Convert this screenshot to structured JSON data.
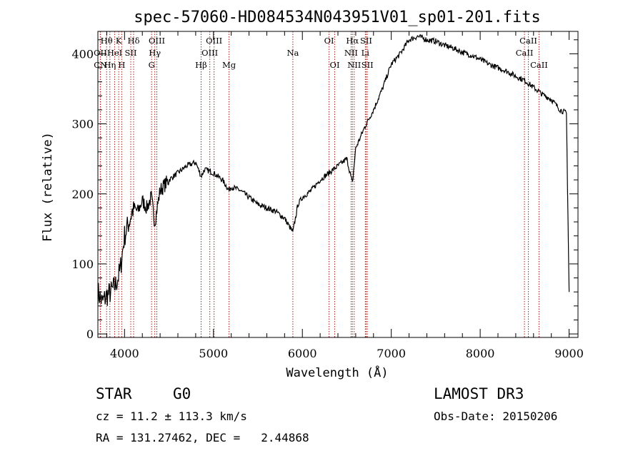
{
  "chart_data": {
    "type": "line",
    "title": "spec-57060-HD084534N043951V01_sp01-201.fits",
    "xlabel": "Wavelength (Å)",
    "ylabel": "Flux (relative)",
    "xlim": [
      3700,
      9100
    ],
    "ylim": [
      -5,
      432
    ],
    "x_ticks": [
      4000,
      5000,
      6000,
      7000,
      8000,
      9000
    ],
    "y_ticks": [
      0,
      100,
      200,
      300,
      400
    ],
    "series": [
      {
        "name": "spectrum",
        "x": [
          3700,
          3750,
          3800,
          3850,
          3900,
          3950,
          4000,
          4050,
          4100,
          4150,
          4200,
          4250,
          4300,
          4340,
          4400,
          4500,
          4600,
          4700,
          4800,
          4861,
          4900,
          5000,
          5100,
          5175,
          5200,
          5300,
          5400,
          5500,
          5600,
          5700,
          5800,
          5893,
          5950,
          6000,
          6100,
          6200,
          6300,
          6400,
          6500,
          6563,
          6600,
          6700,
          6800,
          6900,
          7000,
          7100,
          7200,
          7300,
          7400,
          7500,
          7600,
          7700,
          7800,
          7900,
          8000,
          8100,
          8200,
          8300,
          8400,
          8500,
          8600,
          8700,
          8800,
          8900,
          8970,
          9000
        ],
        "values": [
          60,
          45,
          55,
          60,
          70,
          90,
          140,
          160,
          180,
          175,
          190,
          180,
          195,
          160,
          205,
          220,
          230,
          240,
          245,
          225,
          235,
          230,
          220,
          205,
          210,
          205,
          195,
          185,
          180,
          175,
          165,
          145,
          185,
          195,
          205,
          220,
          230,
          240,
          250,
          215,
          265,
          295,
          320,
          350,
          385,
          400,
          420,
          425,
          420,
          418,
          412,
          408,
          402,
          398,
          392,
          385,
          380,
          375,
          368,
          362,
          352,
          342,
          335,
          320,
          315,
          60
        ]
      }
    ],
    "emission_lines": [
      {
        "label": "Hθ",
        "wavelength": 3798,
        "row": 0
      },
      {
        "label": "K",
        "wavelength": 3934,
        "row": 0
      },
      {
        "label": "Hδ",
        "wavelength": 4102,
        "row": 0
      },
      {
        "label": "OIII",
        "wavelength": 4363,
        "row": 0
      },
      {
        "label": "OIII",
        "wavelength": 5007,
        "row": 0
      },
      {
        "label": "OI",
        "wavelength": 6300,
        "row": 0
      },
      {
        "label": "Hα",
        "wavelength": 6563,
        "row": 0
      },
      {
        "label": "SII",
        "wavelength": 6717,
        "row": 0
      },
      {
        "label": "CaII",
        "wavelength": 8542,
        "row": 0
      },
      {
        "label": "OII",
        "wavelength": 3727,
        "row": 1
      },
      {
        "label": "HeI",
        "wavelength": 3889,
        "row": 1
      },
      {
        "label": "SII",
        "wavelength": 4070,
        "row": 1
      },
      {
        "label": "Hγ",
        "wavelength": 4340,
        "row": 1
      },
      {
        "label": "OIII",
        "wavelength": 4959,
        "row": 1
      },
      {
        "label": "Na",
        "wavelength": 5893,
        "row": 1
      },
      {
        "label": "NII",
        "wavelength": 6548,
        "row": 1
      },
      {
        "label": "Li",
        "wavelength": 6708,
        "row": 1
      },
      {
        "label": "CaII",
        "wavelength": 8498,
        "row": 1
      },
      {
        "label": "CN",
        "wavelength": 3730,
        "row": 2
      },
      {
        "label": "Hη",
        "wavelength": 3835,
        "row": 2
      },
      {
        "label": "H",
        "wavelength": 3968,
        "row": 2
      },
      {
        "label": "G",
        "wavelength": 4304,
        "row": 2
      },
      {
        "label": "Hβ",
        "wavelength": 4861,
        "row": 2
      },
      {
        "label": "Mg",
        "wavelength": 5175,
        "row": 2
      },
      {
        "label": "OI",
        "wavelength": 6364,
        "row": 2
      },
      {
        "label": "NII",
        "wavelength": 6583,
        "row": 2
      },
      {
        "label": "SII",
        "wavelength": 6731,
        "row": 2
      },
      {
        "label": "CaII",
        "wavelength": 8662,
        "row": 2
      }
    ]
  },
  "info": {
    "object_class": "STAR",
    "subclass": "G0",
    "survey": "LAMOST DR3",
    "redshift": "cz = 11.2 ± 113.3 km/s",
    "obs_date": "Obs-Date: 20150206",
    "coordinates": "RA = 131.27462, DEC =   2.44868"
  }
}
